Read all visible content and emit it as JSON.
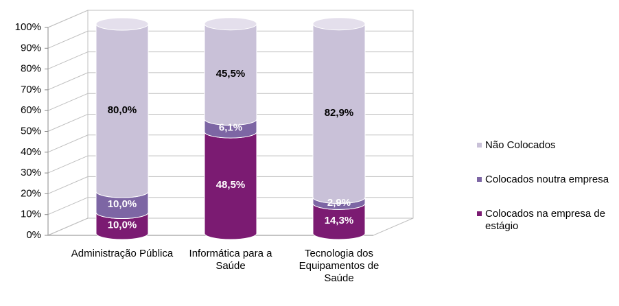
{
  "chart_data": {
    "type": "bar3d_stacked",
    "categories": [
      "Administração Pública",
      "Informática para a Saúde",
      "Tecnologia dos Equipamentos de Saúde"
    ],
    "series": [
      {
        "name": "Colocados na empresa de estágio",
        "color": "#7b1b72",
        "top_color": "#a55a9c",
        "label_color": "#ffffff",
        "values": [
          10.0,
          48.5,
          14.3
        ],
        "value_labels": [
          "10,0%",
          "48,5%",
          "14,3%"
        ]
      },
      {
        "name": "Colocados noutra empresa",
        "color": "#7d66a4",
        "top_color": "#a898c4",
        "label_color": "#ffffff",
        "values": [
          10.0,
          6.1,
          2.9
        ],
        "value_labels": [
          "10,0%",
          "6,1%",
          "2,9%"
        ]
      },
      {
        "name": "Não Colocados",
        "color": "#c9c1d8",
        "top_color": "#e4dfec",
        "label_color": "#000000",
        "values": [
          80.0,
          45.5,
          82.9
        ],
        "value_labels": [
          "80,0%",
          "45,5%",
          "82,9%"
        ]
      }
    ],
    "ylim": [
      0,
      100
    ],
    "yticks": [
      {
        "value": 0,
        "label": "0%"
      },
      {
        "value": 10,
        "label": "10%"
      },
      {
        "value": 20,
        "label": "20%"
      },
      {
        "value": 30,
        "label": "30%"
      },
      {
        "value": 40,
        "label": "40%"
      },
      {
        "value": 50,
        "label": "50%"
      },
      {
        "value": 60,
        "label": "60%"
      },
      {
        "value": 70,
        "label": "70%"
      },
      {
        "value": 80,
        "label": "80%"
      },
      {
        "value": 90,
        "label": "90%"
      },
      {
        "value": 100,
        "label": "100%"
      }
    ],
    "grid": true,
    "legend": "right"
  }
}
